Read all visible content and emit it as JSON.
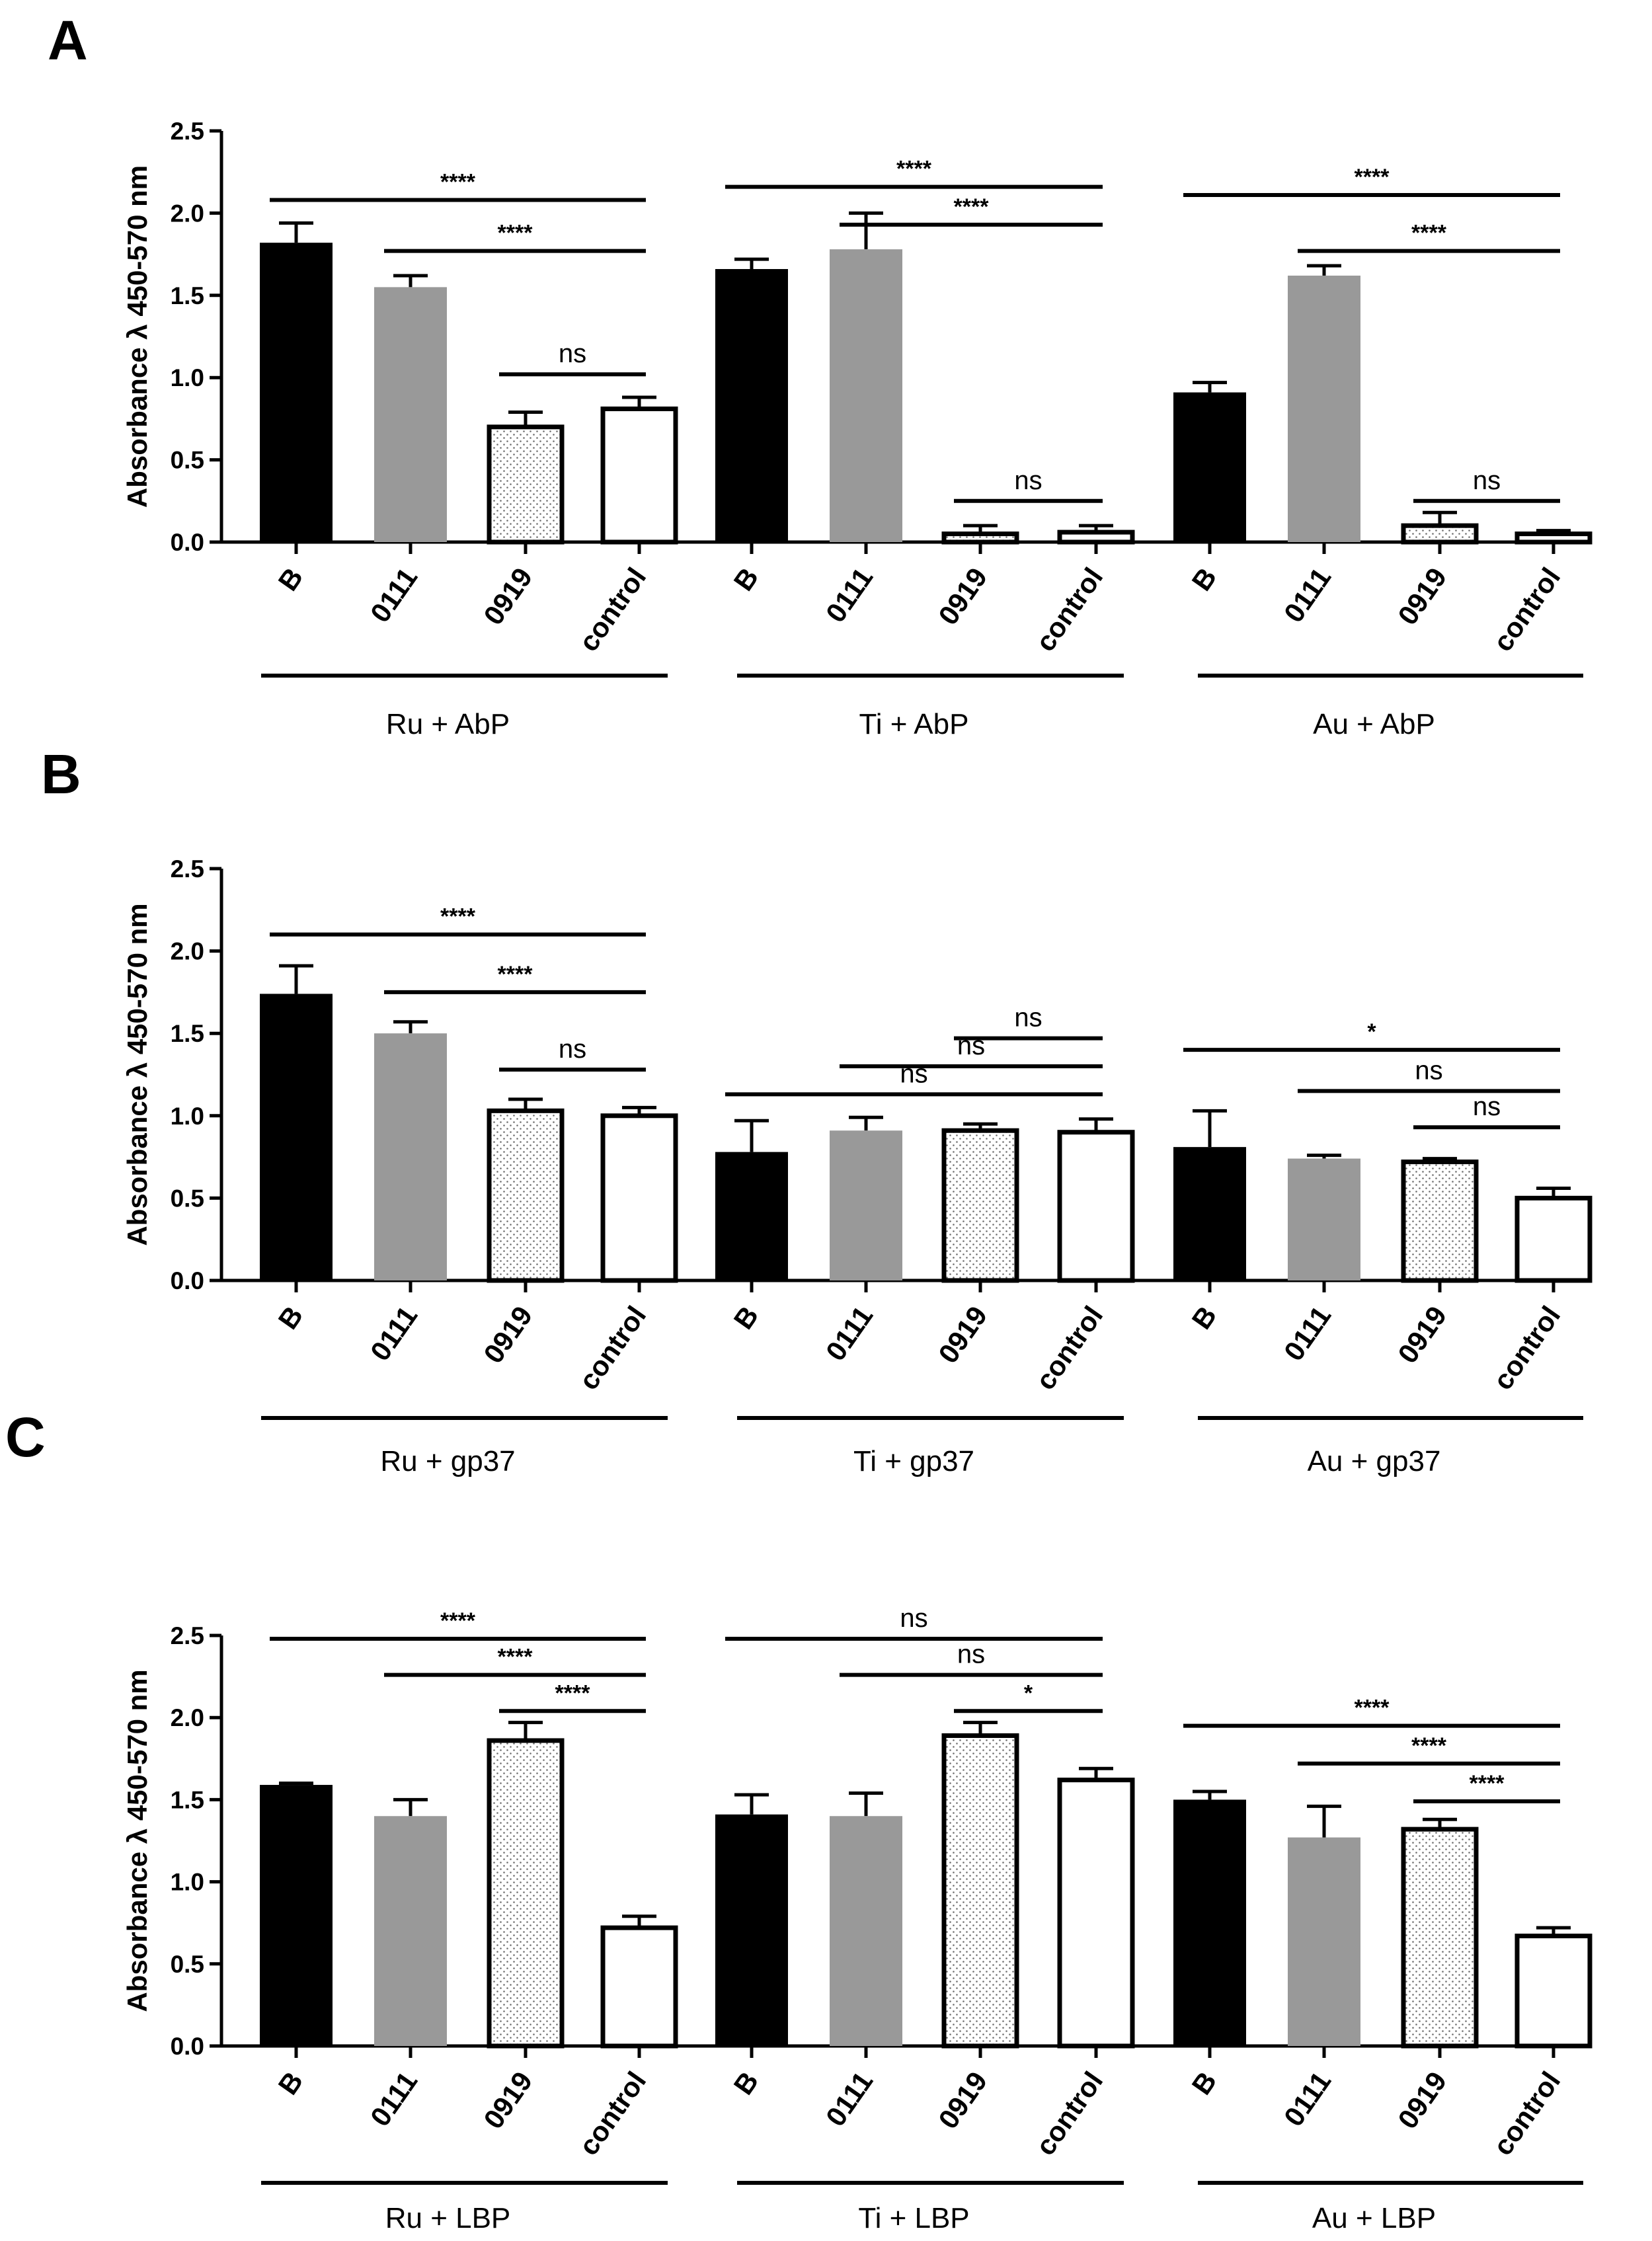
{
  "chart_data": [
    {
      "panel": "A",
      "type": "bar",
      "ylabel": "Absorbance λ 450-570 nm",
      "ylim": [
        0,
        2.5
      ],
      "yticks": [
        "0.0",
        "0.5",
        "1.0",
        "1.5",
        "2.0",
        "2.5"
      ],
      "groups": [
        {
          "label": "Ru + AbP",
          "categories": [
            "B",
            "0111",
            "0919",
            "control"
          ],
          "values": [
            1.82,
            1.55,
            0.7,
            0.81
          ],
          "errors": [
            0.12,
            0.07,
            0.09,
            0.07
          ]
        },
        {
          "label": "Ti + AbP",
          "categories": [
            "B",
            "0111",
            "0919",
            "control"
          ],
          "values": [
            1.66,
            1.78,
            0.05,
            0.06
          ],
          "errors": [
            0.06,
            0.22,
            0.05,
            0.04
          ]
        },
        {
          "label": "Au + AbP",
          "categories": [
            "B",
            "0111",
            "0919",
            "control"
          ],
          "values": [
            0.91,
            1.62,
            0.1,
            0.05
          ],
          "errors": [
            0.06,
            0.06,
            0.08,
            0.02
          ]
        }
      ],
      "significance": [
        {
          "group": 0,
          "from": 0,
          "to": 3,
          "y": 2.08,
          "label": "****"
        },
        {
          "group": 0,
          "from": 1,
          "to": 3,
          "y": 1.77,
          "label": "****"
        },
        {
          "group": 0,
          "from": 2,
          "to": 3,
          "y": 1.02,
          "label": "ns"
        },
        {
          "group": 1,
          "from": 0,
          "to": 3,
          "y": 2.16,
          "label": "****"
        },
        {
          "group": 1,
          "from": 1,
          "to": 3,
          "y": 1.93,
          "label": "****"
        },
        {
          "group": 1,
          "from": 2,
          "to": 3,
          "y": 0.25,
          "label": "ns"
        },
        {
          "group": 2,
          "from": 0,
          "to": 3,
          "y": 2.11,
          "label": "****"
        },
        {
          "group": 2,
          "from": 1,
          "to": 3,
          "y": 1.77,
          "label": "****"
        },
        {
          "group": 2,
          "from": 2,
          "to": 3,
          "y": 0.25,
          "label": "ns"
        }
      ]
    },
    {
      "panel": "B",
      "type": "bar",
      "ylabel": "Absorbance λ 450-570 nm",
      "ylim": [
        0,
        2.5
      ],
      "yticks": [
        "0.0",
        "0.5",
        "1.0",
        "1.5",
        "2.0",
        "2.5"
      ],
      "groups": [
        {
          "label": "Ru + gp37",
          "categories": [
            "B",
            "0111",
            "0919",
            "control"
          ],
          "values": [
            1.74,
            1.5,
            1.03,
            1.0
          ],
          "errors": [
            0.17,
            0.07,
            0.07,
            0.05
          ]
        },
        {
          "label": "Ti + gp37",
          "categories": [
            "B",
            "0111",
            "0919",
            "control"
          ],
          "values": [
            0.78,
            0.91,
            0.91,
            0.9
          ],
          "errors": [
            0.19,
            0.08,
            0.04,
            0.08
          ]
        },
        {
          "label": "Au + gp37",
          "categories": [
            "B",
            "0111",
            "0919",
            "control"
          ],
          "values": [
            0.81,
            0.74,
            0.72,
            0.5
          ],
          "errors": [
            0.22,
            0.02,
            0.02,
            0.06
          ]
        }
      ],
      "significance": [
        {
          "group": 0,
          "from": 0,
          "to": 3,
          "y": 2.1,
          "label": "****"
        },
        {
          "group": 0,
          "from": 1,
          "to": 3,
          "y": 1.75,
          "label": "****"
        },
        {
          "group": 0,
          "from": 2,
          "to": 3,
          "y": 1.28,
          "label": "ns"
        },
        {
          "group": 1,
          "from": 0,
          "to": 3,
          "y": 1.13,
          "label": "ns"
        },
        {
          "group": 1,
          "from": 1,
          "to": 3,
          "y": 1.3,
          "label": "ns"
        },
        {
          "group": 1,
          "from": 2,
          "to": 3,
          "y": 1.47,
          "label": "ns"
        },
        {
          "group": 2,
          "from": 0,
          "to": 3,
          "y": 1.4,
          "label": "*"
        },
        {
          "group": 2,
          "from": 1,
          "to": 3,
          "y": 1.15,
          "label": "ns"
        },
        {
          "group": 2,
          "from": 2,
          "to": 3,
          "y": 0.93,
          "label": "ns"
        }
      ]
    },
    {
      "panel": "C",
      "type": "bar",
      "ylabel": "Absorbance λ 450-570 nm",
      "ylim": [
        0,
        2.5
      ],
      "yticks": [
        "0.0",
        "0.5",
        "1.0",
        "1.5",
        "2.0",
        "2.5"
      ],
      "groups": [
        {
          "label": "Ru + LBP",
          "categories": [
            "B",
            "0111",
            "0919",
            "control"
          ],
          "values": [
            1.59,
            1.4,
            1.86,
            0.72
          ],
          "errors": [
            0.01,
            0.1,
            0.11,
            0.07
          ]
        },
        {
          "label": "Ti + LBP",
          "categories": [
            "B",
            "0111",
            "0919",
            "control"
          ],
          "values": [
            1.41,
            1.4,
            1.89,
            1.62
          ],
          "errors": [
            0.12,
            0.14,
            0.08,
            0.07
          ]
        },
        {
          "label": "Au + LBP",
          "categories": [
            "B",
            "0111",
            "0919",
            "control"
          ],
          "values": [
            1.5,
            1.27,
            1.32,
            0.67
          ],
          "errors": [
            0.05,
            0.19,
            0.06,
            0.05
          ]
        }
      ],
      "significance": [
        {
          "group": 0,
          "from": 0,
          "to": 3,
          "y": 2.48,
          "label": "****"
        },
        {
          "group": 0,
          "from": 1,
          "to": 3,
          "y": 2.26,
          "label": "****"
        },
        {
          "group": 0,
          "from": 2,
          "to": 3,
          "y": 2.04,
          "label": "****"
        },
        {
          "group": 1,
          "from": 0,
          "to": 3,
          "y": 2.48,
          "label": "ns"
        },
        {
          "group": 1,
          "from": 1,
          "to": 3,
          "y": 2.26,
          "label": "ns"
        },
        {
          "group": 1,
          "from": 2,
          "to": 3,
          "y": 2.04,
          "label": "*"
        },
        {
          "group": 2,
          "from": 0,
          "to": 3,
          "y": 1.95,
          "label": "****"
        },
        {
          "group": 2,
          "from": 1,
          "to": 3,
          "y": 1.72,
          "label": "****"
        },
        {
          "group": 2,
          "from": 2,
          "to": 3,
          "y": 1.49,
          "label": "****"
        }
      ]
    }
  ],
  "colors": {
    "B": "#000000",
    "0111": "#999999",
    "0919": "#ffffff",
    "control": "#ffffff",
    "ink": "#000000"
  }
}
